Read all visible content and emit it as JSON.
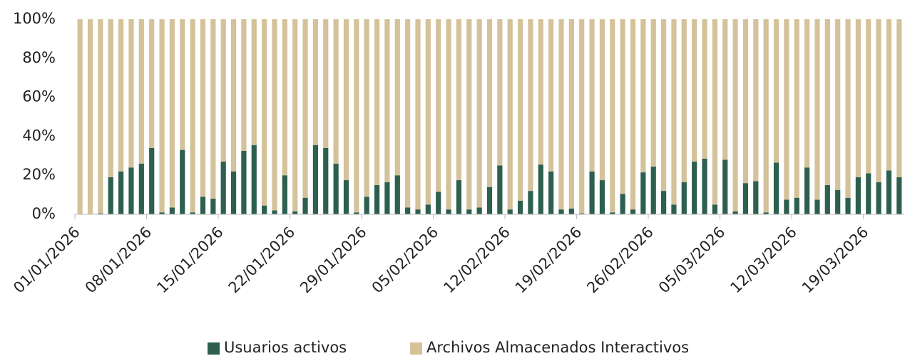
{
  "chart_data": {
    "type": "bar",
    "stacked": true,
    "categories": [
      "01/01/2026",
      null,
      null,
      null,
      null,
      null,
      null,
      "08/01/2026",
      null,
      null,
      null,
      null,
      null,
      null,
      "15/01/2026",
      null,
      null,
      null,
      null,
      null,
      null,
      "22/01/2026",
      null,
      null,
      null,
      null,
      null,
      null,
      "29/01/2026",
      null,
      null,
      null,
      null,
      null,
      null,
      "05/02/2026",
      null,
      null,
      null,
      null,
      null,
      null,
      "12/02/2026",
      null,
      null,
      null,
      null,
      null,
      null,
      "19/02/2026",
      null,
      null,
      null,
      null,
      null,
      null,
      "26/02/2026",
      null,
      null,
      null,
      null,
      null,
      null,
      "05/03/2026",
      null,
      null,
      null,
      null,
      null,
      null,
      "12/03/2026",
      null,
      null,
      null,
      null,
      null,
      null,
      "19/03/2026",
      null,
      null,
      null
    ],
    "series": [
      {
        "name": "Usuarios activos",
        "color": "#2d5f4f",
        "values": [
          0,
          0,
          0.5,
          19,
          22,
          24,
          26,
          34,
          1,
          3.5,
          33,
          1,
          9,
          8,
          27,
          22,
          32.5,
          35.5,
          4.5,
          2,
          20,
          1.5,
          8.5,
          35.5,
          34,
          26,
          17.5,
          1,
          9,
          15,
          16.5,
          20,
          3.5,
          2.5,
          5,
          11.5,
          2.5,
          17.5,
          2.5,
          3.5,
          14,
          25,
          2.5,
          7,
          12,
          25.5,
          22,
          2.5,
          3,
          0.5,
          22,
          17.5,
          1,
          10.5,
          2.5,
          21.5,
          24.5,
          12,
          5,
          16.5,
          27,
          28.5,
          5,
          28,
          1.5,
          16,
          17,
          1,
          26.5,
          7.5,
          8.5,
          24,
          7.5,
          15,
          12.5,
          8.5,
          19,
          21,
          16.5,
          22.5,
          19
        ]
      },
      {
        "name": "Archivos Almacenados Interactivos",
        "color": "#d4c29b",
        "values": [
          100,
          100,
          99.5,
          81,
          78,
          76,
          74,
          66,
          99,
          96.5,
          67,
          99,
          91,
          92,
          73,
          78,
          67.5,
          64.5,
          95.5,
          98,
          80,
          98.5,
          91.5,
          64.5,
          66,
          74,
          82.5,
          99,
          91,
          85,
          83.5,
          80,
          96.5,
          97.5,
          95,
          88.5,
          97.5,
          82.5,
          97.5,
          96.5,
          86,
          75,
          97.5,
          93,
          88,
          74.5,
          78,
          97.5,
          97,
          99.5,
          78,
          82.5,
          99,
          89.5,
          97.5,
          78.5,
          75.5,
          88,
          95,
          83.5,
          73,
          71.5,
          95,
          72,
          98.5,
          84,
          83,
          99,
          73.5,
          92.5,
          91.5,
          76,
          92.5,
          85,
          87.5,
          91.5,
          81,
          79,
          83.5,
          77.5,
          81
        ]
      }
    ],
    "ylim": [
      0,
      100
    ],
    "yticks": [
      {
        "value": 0,
        "label": "0%"
      },
      {
        "value": 20,
        "label": "20%"
      },
      {
        "value": 40,
        "label": "40%"
      },
      {
        "value": 60,
        "label": "60%"
      },
      {
        "value": 80,
        "label": "80%"
      },
      {
        "value": 100,
        "label": "100%"
      }
    ],
    "legend": "bottom"
  }
}
